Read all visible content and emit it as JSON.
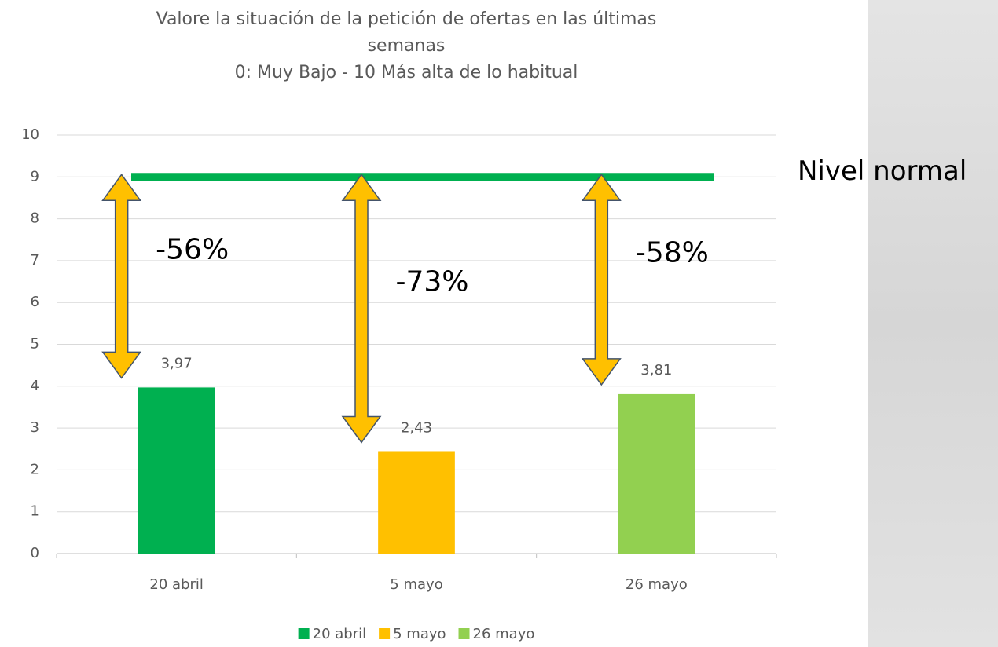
{
  "chart_data": {
    "type": "bar",
    "title": "Valore la situación de la petición de ofertas en las últimas semanas",
    "subtitle": "0: Muy Bajo - 10 Más alta de lo habitual",
    "categories": [
      "20 abril",
      "5 mayo",
      "26 mayo"
    ],
    "values": [
      3.97,
      2.43,
      3.81
    ],
    "value_labels": [
      "3,97",
      "2,43",
      "3,81"
    ],
    "colors": [
      "#00b050",
      "#ffc000",
      "#92d050"
    ],
    "ylim": [
      0,
      10
    ],
    "yticks": [
      0,
      1,
      2,
      3,
      4,
      5,
      6,
      7,
      8,
      9,
      10
    ],
    "grid": true,
    "reference_line": {
      "value": 9,
      "label": "Nivel normal",
      "color": "#00b050"
    },
    "annotations": [
      "-56%",
      "-73%",
      "-58%"
    ],
    "arrow_color": "#ffc000",
    "legend": "bottom"
  }
}
